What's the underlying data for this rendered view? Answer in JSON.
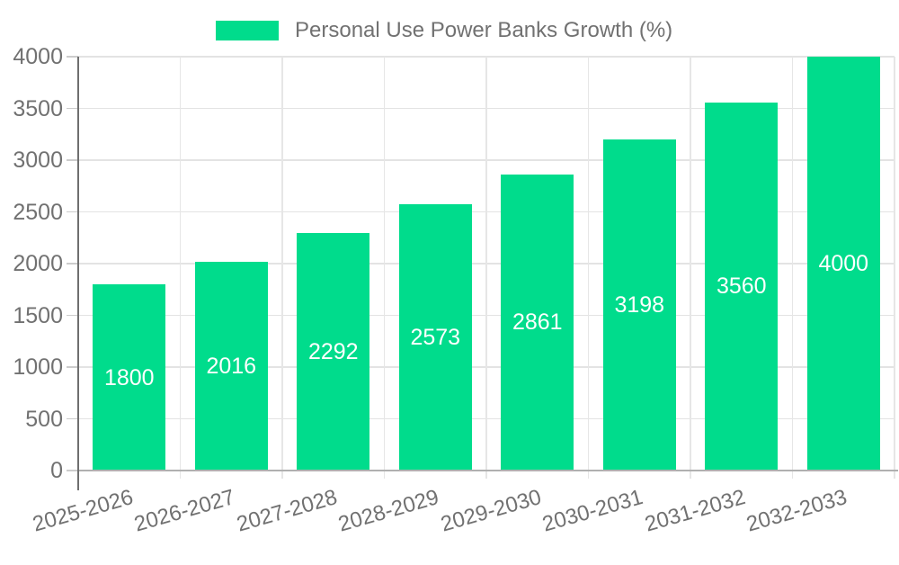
{
  "legend": {
    "label": "Personal Use Power Banks Growth (%)",
    "swatch_color": "#00DC8C",
    "position": "top"
  },
  "chart_data": {
    "type": "bar",
    "title": "Personal Use Power Banks Growth (%)",
    "categories": [
      "2025-2026",
      "2026-2027",
      "2027-2028",
      "2028-2029",
      "2029-2030",
      "2030-2031",
      "2031-2032",
      "2032-2033"
    ],
    "values": [
      1800,
      2016,
      2292,
      2573,
      2861,
      3198,
      3560,
      4000
    ],
    "series": [
      {
        "name": "Personal Use Power Banks Growth (%)",
        "values": [
          1800,
          2016,
          2292,
          2573,
          2861,
          3198,
          3560,
          4000
        ]
      }
    ],
    "xlabel": "",
    "ylabel": "",
    "ylim": [
      0,
      4000
    ],
    "yticks": [
      0,
      500,
      1000,
      1500,
      2000,
      2500,
      3000,
      3500,
      4000
    ],
    "grid": true,
    "legend_position": "top",
    "bar_color": "#00DC8C",
    "value_label_color": "#ffffff",
    "axis_text_color": "#717171",
    "x_label_rotation_deg": -16
  }
}
